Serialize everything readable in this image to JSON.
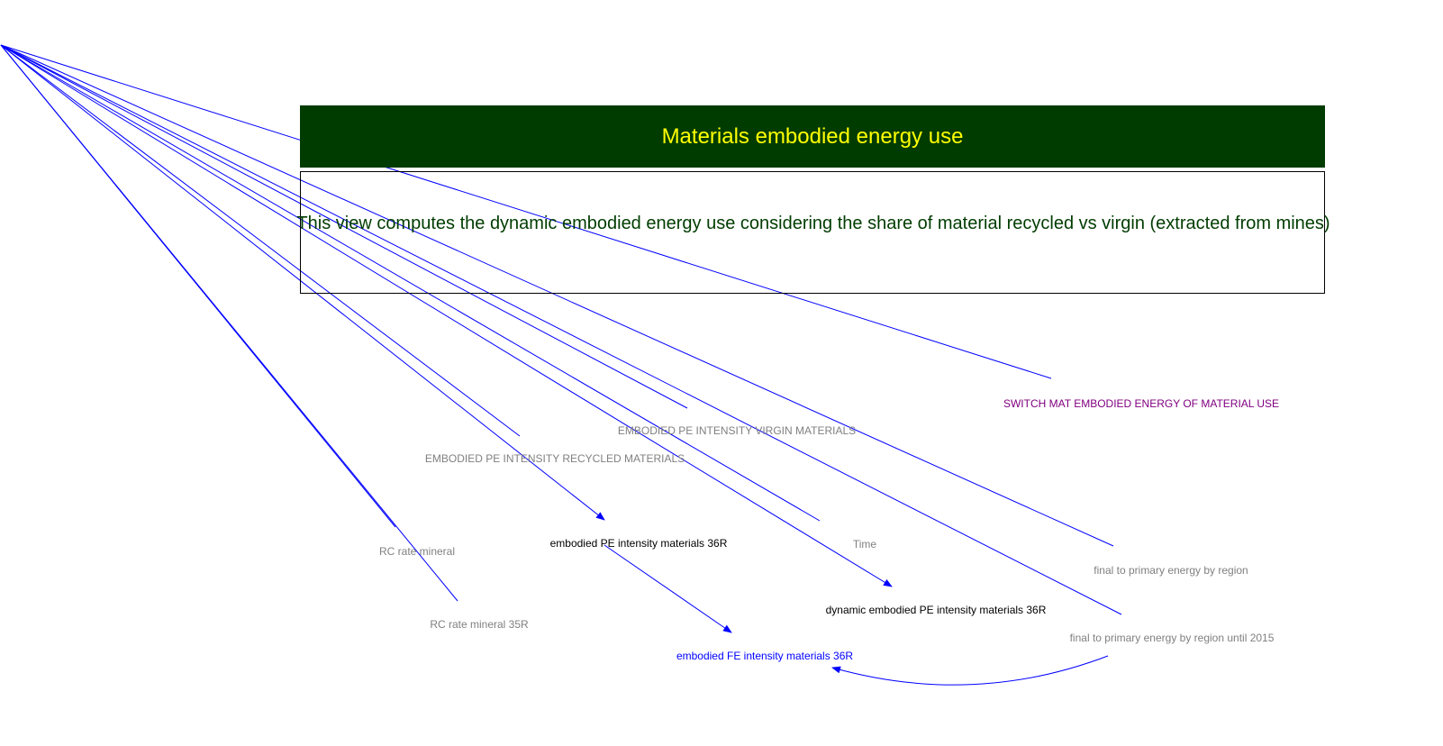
{
  "colors": {
    "title_background": "#003c00",
    "title_text": "#ffff00",
    "description_text": "#003c00",
    "link": "#0000ff",
    "shadow_variable": "#808080",
    "switch_variable": "#800080",
    "output_variable": "#0000ff",
    "normal_variable": "#000000"
  },
  "title": "Materials embodied energy use",
  "description": "This view computes the dynamic embodied energy use considering the share of material recycled vs virgin (extracted from mines)",
  "variables": {
    "switch_mat": "SWITCH MAT EMBODIED ENERGY OF MATERIAL USE",
    "pe_virgin": "EMBODIED PE INTENSITY VIRGIN MATERIALS",
    "pe_recycled": "EMBODIED PE INTENSITY RECYCLED MATERIALS",
    "rc_rate": "RC rate mineral",
    "pe_36r": "embodied PE intensity materials 36R",
    "time": "Time",
    "fte_region": "final to primary energy by region",
    "rc_rate_35r": "RC rate mineral 35R",
    "dynamic_pe": "dynamic embodied PE intensity materials 36R",
    "fte_region_2015": "final to primary energy by region until 2015",
    "fe_36r": "embodied FE intensity materials 36R"
  }
}
